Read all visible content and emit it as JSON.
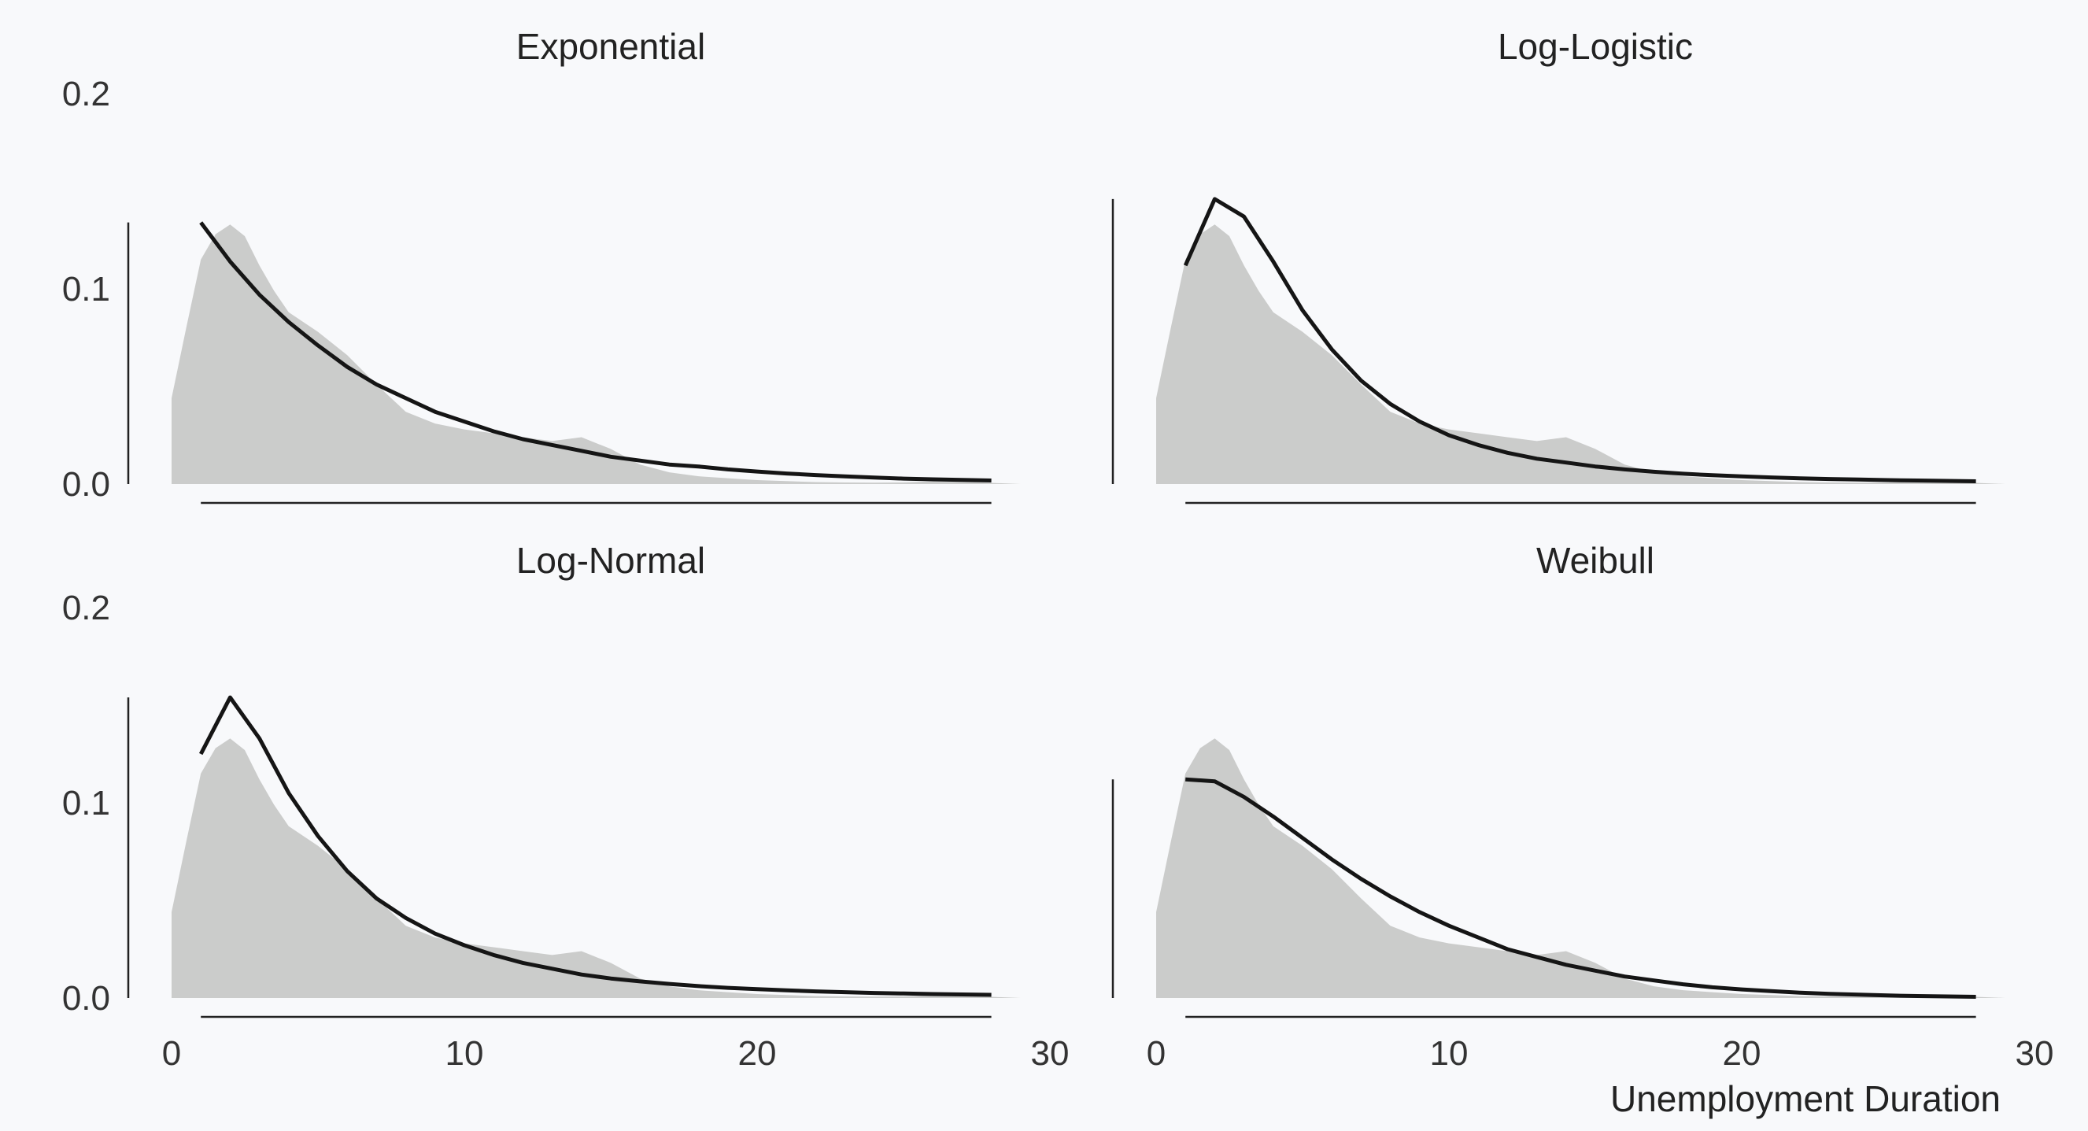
{
  "chart_data": {
    "type": "area",
    "xlabel": "Unemployment Duration",
    "ylabel": "",
    "xlim": [
      0,
      30
    ],
    "ylim": [
      0,
      0.2
    ],
    "x_ticks": [
      "0",
      "10",
      "20",
      "30"
    ],
    "y_ticks": [
      "0.0",
      "0.1",
      "0.2"
    ],
    "grid": false,
    "legend": "none",
    "colors": {
      "density_fill": "#cbcccb",
      "fit_line": "#151515",
      "axis": "#222222",
      "background": "#f8f9fb"
    },
    "density": {
      "x": [
        0,
        0.5,
        1,
        1.5,
        2,
        2.5,
        3,
        3.5,
        4,
        5,
        6,
        7,
        8,
        9,
        10,
        11,
        12,
        13,
        14,
        15,
        16,
        17,
        18,
        19,
        20,
        21,
        22,
        23,
        24,
        25,
        26,
        27,
        28,
        29
      ],
      "y": [
        0.044,
        0.08,
        0.115,
        0.128,
        0.133,
        0.127,
        0.112,
        0.099,
        0.088,
        0.078,
        0.066,
        0.051,
        0.037,
        0.031,
        0.028,
        0.026,
        0.024,
        0.022,
        0.024,
        0.018,
        0.01,
        0.006,
        0.004,
        0.003,
        0.002,
        0.0015,
        0.001,
        0.0008,
        0.0007,
        0.0008,
        0.0014,
        0.0013,
        0.0006,
        0
      ]
    },
    "panels": [
      {
        "title": "Exponential",
        "fit": {
          "x": [
            1,
            2,
            3,
            4,
            5,
            6,
            7,
            8,
            9,
            10,
            11,
            12,
            13,
            14,
            15,
            16,
            17,
            18,
            19,
            20,
            21,
            22,
            23,
            24,
            25,
            26,
            27,
            28
          ],
          "y": [
            0.134,
            0.114,
            0.097,
            0.083,
            0.071,
            0.06,
            0.051,
            0.044,
            0.037,
            0.032,
            0.027,
            0.023,
            0.02,
            0.017,
            0.014,
            0.012,
            0.01,
            0.009,
            0.0075,
            0.0064,
            0.0054,
            0.0046,
            0.0039,
            0.0033,
            0.0028,
            0.0024,
            0.0021,
            0.0018
          ]
        }
      },
      {
        "title": "Log-Logistic",
        "fit": {
          "x": [
            1,
            2,
            3,
            4,
            5,
            6,
            7,
            8,
            9,
            10,
            11,
            12,
            13,
            14,
            15,
            16,
            17,
            18,
            19,
            20,
            21,
            22,
            23,
            24,
            25,
            26,
            27,
            28
          ],
          "y": [
            0.112,
            0.146,
            0.137,
            0.114,
            0.089,
            0.069,
            0.053,
            0.041,
            0.032,
            0.025,
            0.02,
            0.016,
            0.013,
            0.011,
            0.009,
            0.0075,
            0.0063,
            0.0053,
            0.0045,
            0.0039,
            0.0034,
            0.0029,
            0.0026,
            0.0023,
            0.002,
            0.0018,
            0.0016,
            0.0014
          ]
        }
      },
      {
        "title": "Log-Normal",
        "fit": {
          "x": [
            1,
            2,
            3,
            4,
            5,
            6,
            7,
            8,
            9,
            10,
            11,
            12,
            13,
            14,
            15,
            16,
            17,
            18,
            19,
            20,
            21,
            22,
            23,
            24,
            25,
            26,
            27,
            28
          ],
          "y": [
            0.125,
            0.154,
            0.133,
            0.105,
            0.083,
            0.065,
            0.051,
            0.041,
            0.033,
            0.027,
            0.022,
            0.018,
            0.015,
            0.012,
            0.01,
            0.0085,
            0.0072,
            0.0061,
            0.0052,
            0.0045,
            0.0039,
            0.0034,
            0.003,
            0.0026,
            0.0023,
            0.002,
            0.0018,
            0.0016
          ]
        }
      },
      {
        "title": "Weibull",
        "fit": {
          "x": [
            1,
            2,
            3,
            4,
            5,
            6,
            7,
            8,
            9,
            10,
            11,
            12,
            13,
            14,
            15,
            16,
            17,
            18,
            19,
            20,
            21,
            22,
            23,
            24,
            25,
            26,
            27,
            28
          ],
          "y": [
            0.112,
            0.111,
            0.103,
            0.093,
            0.082,
            0.071,
            0.061,
            0.052,
            0.044,
            0.037,
            0.031,
            0.025,
            0.021,
            0.017,
            0.014,
            0.011,
            0.009,
            0.007,
            0.0055,
            0.0044,
            0.0035,
            0.0027,
            0.0021,
            0.0017,
            0.0013,
            0.001,
            0.0008,
            0.0006
          ]
        }
      }
    ]
  }
}
